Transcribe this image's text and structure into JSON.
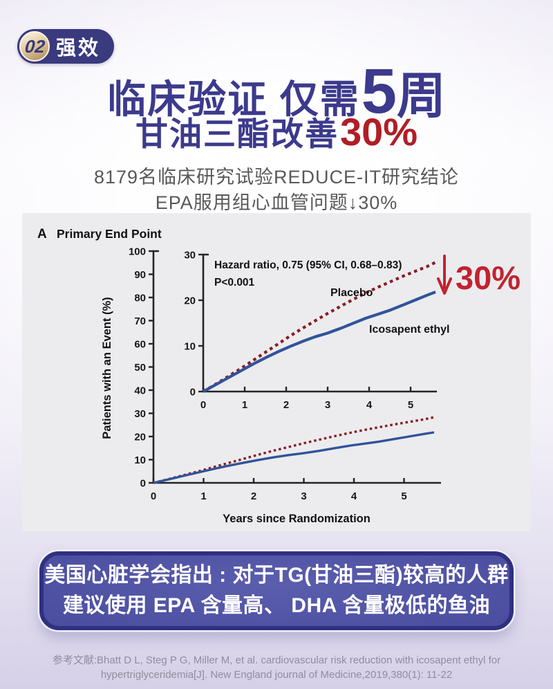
{
  "badge": {
    "number": "02",
    "label": "强效"
  },
  "heading": {
    "line1_prefix": "临床验证 仅需",
    "line1_number": "5",
    "line1_unit": "周",
    "line2_text": "甘油三酯改善",
    "line2_highlight": "30%"
  },
  "subheading": {
    "line1": "8179名临床研究试验REDUCE-IT研究结论",
    "line2": "EPA服用组心血管问题↓30%"
  },
  "chart_data": {
    "type": "line",
    "panel_label": "A",
    "title": "Primary End Point",
    "xlabel": "Years since Randomization",
    "ylabel": "Patients with an Event (%)",
    "hazard_annotation": "Hazard ratio, 0.75 (95% CI, 0.68–0.83)",
    "p_annotation": "P<0.001",
    "reduction_label": "30%",
    "legend_position": "inline-labels",
    "main_axes": {
      "xlim": [
        0,
        5.7
      ],
      "ylim": [
        0,
        100
      ],
      "xticks": [
        0,
        1,
        2,
        3,
        4,
        5
      ],
      "yticks": [
        0,
        10,
        20,
        30,
        40,
        50,
        60,
        70,
        80,
        90,
        100
      ],
      "grid": false
    },
    "inset_axes": {
      "xlim": [
        0,
        5.7
      ],
      "ylim": [
        0,
        30
      ],
      "xticks": [
        0,
        1,
        2,
        3,
        4,
        5
      ],
      "yticks": [
        0,
        10,
        20,
        30
      ],
      "grid": false
    },
    "series": [
      {
        "name": "Placebo",
        "style": "dashed",
        "color": "#8a1d22",
        "points": [
          [
            0,
            0
          ],
          [
            0.3,
            1.6
          ],
          [
            0.6,
            3.3
          ],
          [
            0.9,
            5.0
          ],
          [
            1.2,
            6.8
          ],
          [
            1.5,
            8.6
          ],
          [
            1.8,
            10.4
          ],
          [
            2.1,
            12.2
          ],
          [
            2.4,
            13.9
          ],
          [
            2.7,
            15.5
          ],
          [
            3.0,
            17.1
          ],
          [
            3.3,
            18.6
          ],
          [
            3.6,
            20.1
          ],
          [
            3.9,
            21.5
          ],
          [
            4.2,
            22.8
          ],
          [
            4.5,
            24.0
          ],
          [
            4.8,
            25.2
          ],
          [
            5.1,
            26.3
          ],
          [
            5.4,
            27.4
          ],
          [
            5.6,
            28.3
          ]
        ]
      },
      {
        "name": "Icosapent ethyl",
        "style": "solid",
        "color": "#31549a",
        "points": [
          [
            0,
            0
          ],
          [
            0.3,
            1.5
          ],
          [
            0.6,
            3.0
          ],
          [
            0.9,
            4.5
          ],
          [
            1.2,
            6.0
          ],
          [
            1.5,
            7.4
          ],
          [
            1.8,
            8.7
          ],
          [
            2.1,
            9.9
          ],
          [
            2.4,
            11.0
          ],
          [
            2.7,
            12.0
          ],
          [
            3.0,
            12.8
          ],
          [
            3.3,
            13.8
          ],
          [
            3.6,
            14.9
          ],
          [
            3.9,
            16.0
          ],
          [
            4.2,
            16.9
          ],
          [
            4.5,
            17.8
          ],
          [
            4.8,
            18.9
          ],
          [
            5.1,
            20.0
          ],
          [
            5.4,
            21.1
          ],
          [
            5.6,
            21.8
          ]
        ]
      }
    ]
  },
  "callout": {
    "line1": "美国心脏学会指出 : 对于TG(甘油三酯)较高的人群",
    "line2": "建议使用 EPA 含量高、 DHA 含量极低的鱼油"
  },
  "reference": {
    "line1": "参考文献:Bhatt D L, Steg P G, Miller M, et al. cardiovascular risk reduction with icosapent ethyl for",
    "line2": "hypertriglyceridemia[J]. New England journal of Medicine,2019,380(1): 11-22"
  },
  "colors": {
    "indigo": "#3c3a8c",
    "title_red": "#b01e26",
    "arrow_red": "#c1232e",
    "badge_pill": "#3a3a7e",
    "badge_gold": "#caa36b",
    "callout_bg": "#44479a",
    "placebo": "#8a1d22",
    "icosapent": "#31549a"
  }
}
